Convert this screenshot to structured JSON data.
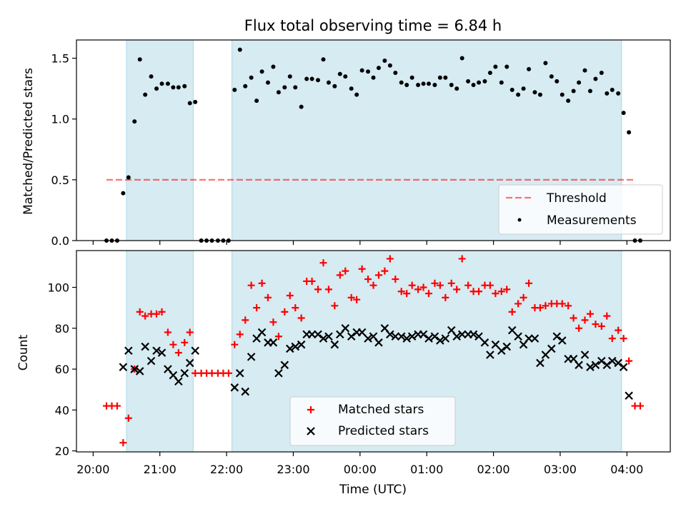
{
  "title": "Flux total observing time = 6.84 h",
  "chart_data": [
    {
      "type": "scatter",
      "ylabel": "Matched/Predicted stars",
      "ylim": [
        0,
        1.65
      ],
      "yticks": [
        0.0,
        0.5,
        1.0,
        1.5
      ],
      "ytick_labels": [
        "0.0",
        "0.5",
        "1.0",
        "1.5"
      ],
      "xlim": [
        -0.25,
        8.65
      ],
      "threshold": 0.5,
      "threshold_range": [
        0.2,
        8.1
      ],
      "shaded_spans": [
        [
          0.5,
          1.5
        ],
        [
          2.08,
          7.92
        ]
      ],
      "legend": {
        "position": "lower-right",
        "entries": [
          {
            "label": "Threshold",
            "key": "threshold"
          },
          {
            "label": "Measurements",
            "key": "measurements"
          }
        ]
      },
      "series": [
        {
          "name": "Measurements",
          "points": [
            [
              0.2,
              0
            ],
            [
              0.28,
              0
            ],
            [
              0.36,
              0
            ],
            [
              0.45,
              0.39
            ],
            [
              0.53,
              0.52
            ],
            [
              0.62,
              0.98
            ],
            [
              0.7,
              1.49
            ],
            [
              0.78,
              1.2
            ],
            [
              0.87,
              1.35
            ],
            [
              0.95,
              1.25
            ],
            [
              1.03,
              1.29
            ],
            [
              1.12,
              1.29
            ],
            [
              1.2,
              1.26
            ],
            [
              1.28,
              1.26
            ],
            [
              1.37,
              1.27
            ],
            [
              1.45,
              1.13
            ],
            [
              1.53,
              1.14
            ],
            [
              1.62,
              0
            ],
            [
              1.7,
              0
            ],
            [
              1.78,
              0
            ],
            [
              1.87,
              0
            ],
            [
              1.95,
              0
            ],
            [
              2.03,
              0
            ],
            [
              2.12,
              1.24
            ],
            [
              2.2,
              1.57
            ],
            [
              2.28,
              1.27
            ],
            [
              2.37,
              1.34
            ],
            [
              2.45,
              1.15
            ],
            [
              2.53,
              1.39
            ],
            [
              2.62,
              1.3
            ],
            [
              2.7,
              1.43
            ],
            [
              2.78,
              1.22
            ],
            [
              2.87,
              1.26
            ],
            [
              2.95,
              1.35
            ],
            [
              3.03,
              1.26
            ],
            [
              3.12,
              1.1
            ],
            [
              3.2,
              1.33
            ],
            [
              3.28,
              1.33
            ],
            [
              3.37,
              1.32
            ],
            [
              3.45,
              1.49
            ],
            [
              3.53,
              1.3
            ],
            [
              3.62,
              1.27
            ],
            [
              3.7,
              1.37
            ],
            [
              3.78,
              1.35
            ],
            [
              3.87,
              1.25
            ],
            [
              3.95,
              1.2
            ],
            [
              4.03,
              1.4
            ],
            [
              4.12,
              1.39
            ],
            [
              4.2,
              1.34
            ],
            [
              4.28,
              1.42
            ],
            [
              4.37,
              1.48
            ],
            [
              4.45,
              1.44
            ],
            [
              4.53,
              1.38
            ],
            [
              4.62,
              1.3
            ],
            [
              4.7,
              1.28
            ],
            [
              4.78,
              1.34
            ],
            [
              4.87,
              1.28
            ],
            [
              4.95,
              1.29
            ],
            [
              5.03,
              1.29
            ],
            [
              5.12,
              1.28
            ],
            [
              5.2,
              1.34
            ],
            [
              5.28,
              1.34
            ],
            [
              5.37,
              1.28
            ],
            [
              5.45,
              1.25
            ],
            [
              5.53,
              1.5
            ],
            [
              5.62,
              1.31
            ],
            [
              5.7,
              1.28
            ],
            [
              5.78,
              1.3
            ],
            [
              5.87,
              1.31
            ],
            [
              5.95,
              1.38
            ],
            [
              6.03,
              1.43
            ],
            [
              6.12,
              1.3
            ],
            [
              6.2,
              1.43
            ],
            [
              6.28,
              1.24
            ],
            [
              6.37,
              1.2
            ],
            [
              6.45,
              1.25
            ],
            [
              6.53,
              1.41
            ],
            [
              6.62,
              1.22
            ],
            [
              6.7,
              1.2
            ],
            [
              6.78,
              1.46
            ],
            [
              6.87,
              1.35
            ],
            [
              6.95,
              1.31
            ],
            [
              7.03,
              1.2
            ],
            [
              7.12,
              1.15
            ],
            [
              7.2,
              1.23
            ],
            [
              7.28,
              1.3
            ],
            [
              7.37,
              1.4
            ],
            [
              7.45,
              1.23
            ],
            [
              7.53,
              1.33
            ],
            [
              7.62,
              1.38
            ],
            [
              7.7,
              1.21
            ],
            [
              7.78,
              1.24
            ],
            [
              7.87,
              1.21
            ],
            [
              7.95,
              1.05
            ],
            [
              8.03,
              0.89
            ],
            [
              8.12,
              0
            ],
            [
              8.2,
              0
            ]
          ]
        }
      ]
    },
    {
      "type": "scatter",
      "xlabel": "Time (UTC)",
      "ylabel": "Count",
      "ylim": [
        19.5,
        118
      ],
      "yticks": [
        20,
        40,
        60,
        80,
        100
      ],
      "ytick_labels": [
        "20",
        "40",
        "60",
        "80",
        "100"
      ],
      "xlim": [
        -0.25,
        8.65
      ],
      "xticks": [
        0,
        1,
        2,
        3,
        4,
        5,
        6,
        7,
        8
      ],
      "xtick_labels": [
        "20:00",
        "21:00",
        "22:00",
        "23:00",
        "00:00",
        "01:00",
        "02:00",
        "03:00",
        "04:00"
      ],
      "shaded_spans": [
        [
          0.5,
          1.5
        ],
        [
          2.08,
          7.92
        ]
      ],
      "legend": {
        "position": "lower-center",
        "entries": [
          {
            "label": "Matched stars",
            "key": "matched"
          },
          {
            "label": "Predicted stars",
            "key": "predicted"
          }
        ]
      },
      "series": [
        {
          "name": "Matched stars",
          "color": "#ff0000",
          "x": [
            0.2,
            0.28,
            0.36,
            0.45,
            0.53,
            0.62,
            0.7,
            0.78,
            0.87,
            0.95,
            1.03,
            1.12,
            1.2,
            1.28,
            1.37,
            1.45,
            1.53,
            1.62,
            1.7,
            1.78,
            1.87,
            1.95,
            2.03,
            2.12,
            2.2,
            2.28,
            2.37,
            2.45,
            2.53,
            2.62,
            2.7,
            2.78,
            2.87,
            2.95,
            3.03,
            3.12,
            3.2,
            3.28,
            3.37,
            3.45,
            3.53,
            3.62,
            3.7,
            3.78,
            3.87,
            3.95,
            4.03,
            4.12,
            4.2,
            4.28,
            4.37,
            4.45,
            4.53,
            4.62,
            4.7,
            4.78,
            4.87,
            4.95,
            5.03,
            5.12,
            5.2,
            5.28,
            5.37,
            5.45,
            5.53,
            5.62,
            5.7,
            5.78,
            5.87,
            5.95,
            6.03,
            6.12,
            6.2,
            6.28,
            6.37,
            6.45,
            6.53,
            6.62,
            6.7,
            6.78,
            6.87,
            6.95,
            7.03,
            7.12,
            7.2,
            7.28,
            7.37,
            7.45,
            7.53,
            7.62,
            7.7,
            7.78,
            7.87,
            7.95,
            8.03,
            8.12,
            8.2
          ],
          "y": [
            42,
            42,
            42,
            24,
            36,
            60,
            88,
            86,
            87,
            87,
            88,
            78,
            72,
            68,
            73,
            78,
            58,
            58,
            58,
            58,
            58,
            58,
            58,
            72,
            77,
            84,
            101,
            90,
            102,
            95,
            83,
            76,
            88,
            96,
            90,
            85,
            103,
            103,
            99,
            112,
            99,
            91,
            106,
            108,
            95,
            94,
            109,
            104,
            101,
            106,
            108,
            114,
            104,
            98,
            97,
            101,
            99,
            100,
            97,
            102,
            101,
            95,
            102,
            99,
            114,
            101,
            98,
            98,
            101,
            101,
            97,
            98,
            99,
            88,
            92,
            95,
            102,
            90,
            90,
            91,
            92,
            92,
            92,
            91,
            85,
            80,
            84,
            87,
            82,
            81,
            86,
            75,
            79,
            75,
            64,
            42,
            42
          ]
        },
        {
          "name": "Predicted stars",
          "color": "#000000",
          "x": [
            0.45,
            0.53,
            0.62,
            0.7,
            0.78,
            0.87,
            0.95,
            1.03,
            1.12,
            1.2,
            1.28,
            1.37,
            1.45,
            1.53,
            2.12,
            2.2,
            2.28,
            2.37,
            2.45,
            2.53,
            2.62,
            2.7,
            2.78,
            2.87,
            2.95,
            3.03,
            3.12,
            3.2,
            3.28,
            3.37,
            3.45,
            3.53,
            3.62,
            3.7,
            3.78,
            3.87,
            3.95,
            4.03,
            4.12,
            4.2,
            4.28,
            4.37,
            4.45,
            4.53,
            4.62,
            4.7,
            4.78,
            4.87,
            4.95,
            5.03,
            5.12,
            5.2,
            5.28,
            5.37,
            5.45,
            5.53,
            5.62,
            5.7,
            5.78,
            5.87,
            5.95,
            6.03,
            6.12,
            6.2,
            6.28,
            6.37,
            6.45,
            6.53,
            6.62,
            6.7,
            6.78,
            6.87,
            6.95,
            7.03,
            7.12,
            7.2,
            7.28,
            7.37,
            7.45,
            7.53,
            7.62,
            7.7,
            7.78,
            7.87,
            7.95,
            8.03
          ],
          "y": [
            61,
            69,
            60,
            59,
            71,
            64,
            69,
            68,
            60,
            57,
            54,
            58,
            63,
            69,
            51,
            58,
            49,
            66,
            75,
            78,
            73,
            73,
            58,
            62,
            70,
            71,
            72,
            77,
            77,
            77,
            75,
            76,
            72,
            77,
            80,
            76,
            78,
            78,
            75,
            76,
            73,
            80,
            77,
            76,
            76,
            75,
            76,
            77,
            77,
            75,
            76,
            74,
            75,
            79,
            76,
            77,
            77,
            77,
            76,
            73,
            67,
            72,
            69,
            71,
            79,
            76,
            72,
            75,
            75,
            63,
            67,
            70,
            76,
            74,
            65,
            65,
            62,
            67,
            61,
            62,
            64,
            62,
            64,
            63,
            61,
            47
          ]
        }
      ]
    }
  ]
}
